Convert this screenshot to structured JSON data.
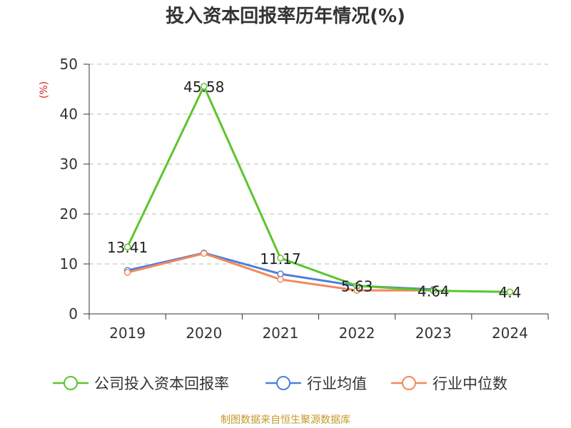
{
  "chart_data": {
    "type": "line",
    "title": "投入资本回报率历年情况(%)",
    "ylabel": "(%)",
    "xlabel": "",
    "categories": [
      "2019",
      "2020",
      "2021",
      "2022",
      "2023",
      "2024"
    ],
    "ylim": [
      0,
      50
    ],
    "yticks": [
      0,
      10,
      20,
      30,
      40,
      50
    ],
    "grid": true,
    "legend_position": "bottom",
    "series": [
      {
        "name": "公司投入资本回报率",
        "color": "#5cc52c",
        "values": [
          13.41,
          45.58,
          11.17,
          5.63,
          4.64,
          4.4
        ],
        "labels": [
          "13.41",
          "45.58",
          "11.17",
          "5.63",
          "4.64",
          "4.4"
        ]
      },
      {
        "name": "行业均值",
        "color": "#4f7fdb",
        "values": [
          8.7,
          12.2,
          8.0,
          5.6,
          4.9,
          null
        ]
      },
      {
        "name": "行业中位数",
        "color": "#f2895a",
        "values": [
          8.3,
          12.1,
          6.9,
          4.7,
          4.7,
          null
        ]
      }
    ]
  },
  "source_text": "制图数据来自恒生聚源数据库"
}
